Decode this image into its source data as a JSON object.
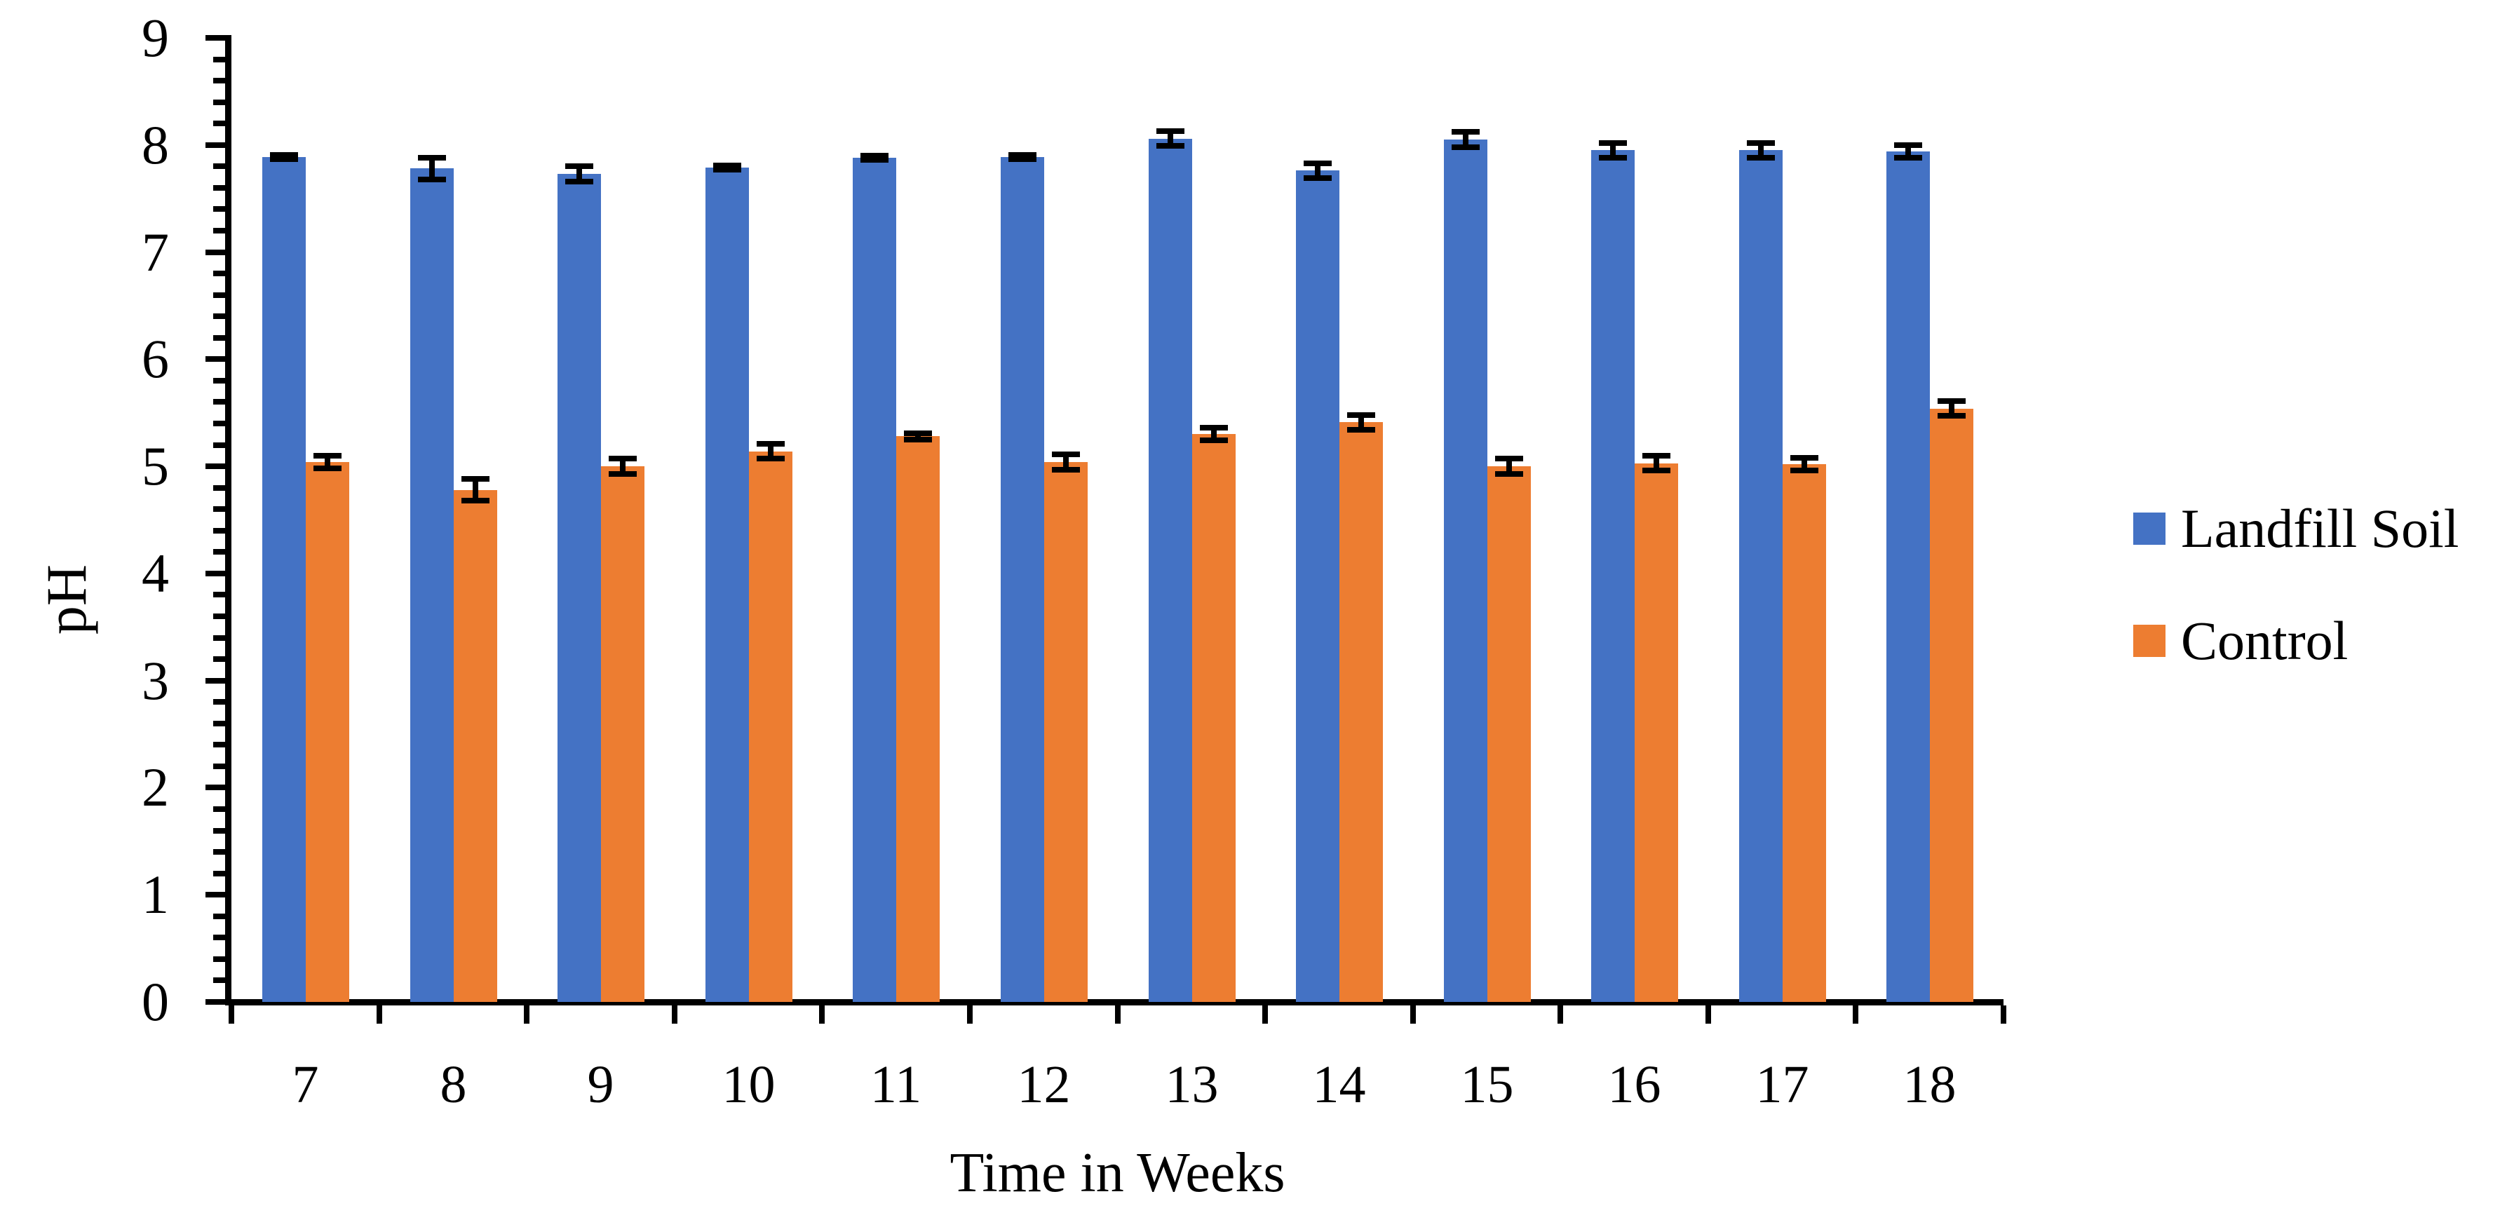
{
  "chart_data": {
    "type": "bar",
    "title": "",
    "xlabel": "Time in Weeks",
    "ylabel": "pH",
    "categories": [
      "7",
      "8",
      "9",
      "10",
      "11",
      "12",
      "13",
      "14",
      "15",
      "16",
      "17",
      "18"
    ],
    "series": [
      {
        "name": "Landfill Soil",
        "color": "#4472C4",
        "values": [
          7.89,
          7.78,
          7.73,
          7.79,
          7.88,
          7.89,
          8.06,
          7.76,
          8.05,
          7.95,
          7.95,
          7.94
        ],
        "errors": [
          0.02,
          0.1,
          0.07,
          0.02,
          0.02,
          0.02,
          0.07,
          0.07,
          0.07,
          0.07,
          0.07,
          0.06
        ]
      },
      {
        "name": "Control",
        "color": "#ED7D31",
        "values": [
          5.04,
          4.78,
          5.0,
          5.14,
          5.28,
          5.04,
          5.3,
          5.41,
          5.0,
          5.03,
          5.02,
          5.54
        ],
        "errors": [
          0.06,
          0.1,
          0.07,
          0.07,
          0.03,
          0.07,
          0.06,
          0.07,
          0.07,
          0.07,
          0.06,
          0.07
        ]
      }
    ],
    "ylim": [
      0,
      9
    ],
    "ytick_step": 1,
    "y_minor_step": 0.2,
    "grid": false,
    "legend_position": "right",
    "error_bar_color": "#000000",
    "axis_color": "#000000"
  }
}
